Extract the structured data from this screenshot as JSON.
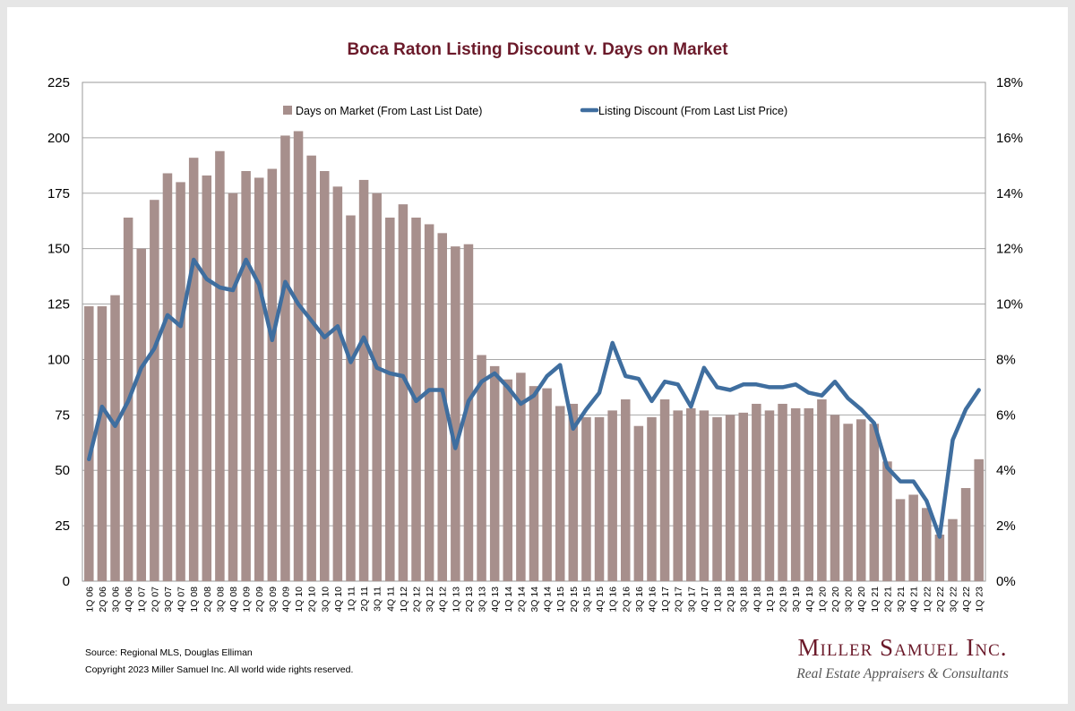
{
  "chart_data": {
    "type": "bar",
    "title": "Boca Raton Listing Discount v. Days on Market",
    "legend_position": "top",
    "grid": true,
    "categories": [
      "1Q 06",
      "2Q 06",
      "3Q 06",
      "4Q 06",
      "1Q 07",
      "2Q 07",
      "3Q 07",
      "4Q 07",
      "1Q 08",
      "2Q 08",
      "3Q 08",
      "4Q 08",
      "1Q 09",
      "2Q 09",
      "3Q 09",
      "4Q 09",
      "1Q 10",
      "2Q 10",
      "3Q 10",
      "4Q 10",
      "1Q 11",
      "2Q 11",
      "3Q 11",
      "4Q 11",
      "1Q 12",
      "2Q 12",
      "3Q 12",
      "4Q 12",
      "1Q 13",
      "2Q 13",
      "3Q 13",
      "4Q 13",
      "1Q 14",
      "2Q 14",
      "3Q 14",
      "4Q 14",
      "1Q 15",
      "2Q 15",
      "3Q 15",
      "4Q 15",
      "1Q 16",
      "2Q 16",
      "3Q 16",
      "4Q 16",
      "1Q 17",
      "2Q 17",
      "3Q 17",
      "4Q 17",
      "1Q 18",
      "2Q 18",
      "3Q 18",
      "4Q 18",
      "1Q 19",
      "2Q 19",
      "3Q 19",
      "4Q 19",
      "1Q 20",
      "2Q 20",
      "3Q 20",
      "4Q 20",
      "1Q 21",
      "2Q 21",
      "3Q 21",
      "4Q 21",
      "1Q 22",
      "2Q 22",
      "3Q 22",
      "4Q 22",
      "1Q 23"
    ],
    "series": [
      {
        "name": "Days on Market (From Last List Date)",
        "type": "bar",
        "axis": "left",
        "color": "#a78f8c",
        "values": [
          124,
          124,
          129,
          164,
          150,
          172,
          184,
          180,
          191,
          183,
          194,
          175,
          185,
          182,
          186,
          201,
          203,
          192,
          185,
          178,
          165,
          181,
          175,
          164,
          170,
          164,
          161,
          157,
          151,
          152,
          102,
          97,
          91,
          94,
          88,
          87,
          79,
          80,
          74,
          74,
          77,
          82,
          70,
          74,
          82,
          77,
          78,
          77,
          74,
          75,
          76,
          80,
          77,
          80,
          78,
          78,
          82,
          75,
          71,
          73,
          71,
          54,
          37,
          39,
          33,
          21,
          28,
          42,
          55
        ]
      },
      {
        "name": "Listing Discount (From Last List Price)",
        "type": "line",
        "axis": "right",
        "color": "#3f6e9f",
        "values": [
          4.4,
          6.3,
          5.6,
          6.5,
          7.7,
          8.4,
          9.6,
          9.2,
          11.6,
          10.9,
          10.6,
          10.5,
          11.6,
          10.7,
          8.7,
          10.8,
          10.0,
          9.4,
          8.8,
          9.2,
          7.9,
          8.8,
          7.7,
          7.5,
          7.4,
          6.5,
          6.9,
          6.9,
          4.8,
          6.5,
          7.2,
          7.5,
          7.0,
          6.4,
          6.7,
          7.4,
          7.8,
          5.5,
          6.2,
          6.8,
          8.6,
          7.4,
          7.3,
          6.5,
          7.2,
          7.1,
          6.3,
          7.7,
          7.0,
          6.9,
          7.1,
          7.1,
          7.0,
          7.0,
          7.1,
          6.8,
          6.7,
          7.2,
          6.6,
          6.2,
          5.7,
          4.1,
          3.6,
          3.6,
          2.9,
          1.6,
          5.1,
          6.2,
          6.9
        ]
      }
    ],
    "y_left": {
      "min": 0,
      "max": 225,
      "step": 25,
      "ticks": [
        "0",
        "25",
        "50",
        "75",
        "100",
        "125",
        "150",
        "175",
        "200",
        "225"
      ]
    },
    "y_right": {
      "min": 0,
      "max": 18,
      "step": 2,
      "ticks": [
        "0%",
        "2%",
        "4%",
        "6%",
        "8%",
        "10%",
        "12%",
        "14%",
        "16%",
        "18%"
      ]
    }
  },
  "footer": {
    "source": "Source: Regional MLS, Douglas Elliman",
    "copyright": "Copyright 2023 Miller Samuel Inc.  All world wide rights reserved."
  },
  "logo": {
    "name": "Miller Samuel Inc.",
    "tagline": "Real Estate Appraisers & Consultants"
  }
}
